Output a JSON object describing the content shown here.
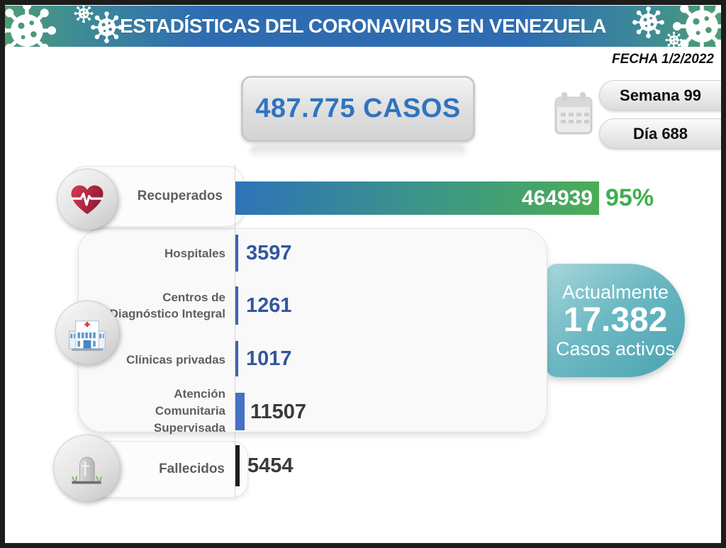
{
  "header": {
    "title": "ESTADÍSTICAS DEL CORONAVIRUS EN VENEZUELA"
  },
  "date_label": "FECHA 1/2/2022",
  "summary": {
    "total_cases_label": "487.775 CASOS",
    "week_label": "Semana 99",
    "day_label": "Día 688"
  },
  "active_box": {
    "intro": "Actualmente",
    "value": "17.382",
    "caption": "Casos activos"
  },
  "chart_data": {
    "type": "bar",
    "orientation": "horizontal",
    "title": "ESTADÍSTICAS DEL CORONAVIRUS EN VENEZUELA",
    "total_cases": 487775,
    "active_cases": 17382,
    "max_value": 464939,
    "rows": [
      {
        "label": "Recuperados",
        "lines": [
          "Recuperados"
        ],
        "value": 464939,
        "value_label": "464939",
        "percent_label": "95%",
        "icon": "heart-pulse"
      },
      {
        "label": "Hospitales",
        "lines": [
          "Hospitales"
        ],
        "value": 3597,
        "value_label": "3597"
      },
      {
        "label": "Centros de Diagnóstico Integral",
        "lines": [
          "Centros de",
          "Diagnóstico Integral"
        ],
        "value": 1261,
        "value_label": "1261",
        "icon": "hospital-building"
      },
      {
        "label": "Clínicas privadas",
        "lines": [
          "Clínicas privadas"
        ],
        "value": 1017,
        "value_label": "1017"
      },
      {
        "label": "Atención Comunitaria Supervisada",
        "lines": [
          "Atención",
          "Comunitaria",
          "Supervisada"
        ],
        "value": 11507,
        "value_label": "11507"
      },
      {
        "label": "Fallecidos",
        "lines": [
          "Fallecidos"
        ],
        "value": 5454,
        "value_label": "5454",
        "icon": "tombstone"
      }
    ]
  },
  "icons": {
    "recovered": "heart-pulse-icon",
    "medical_centers": "hospital-icon",
    "deceased": "tombstone-icon",
    "date": "calendar-icon",
    "decoration": "virus-icon"
  },
  "colors": {
    "header_green": "#4e9c73",
    "header_blue": "#2e6cb2",
    "total_text_blue": "#2e74c0",
    "number_blue": "#33569e",
    "number_dark": "#3a3a3a",
    "bar_gradient_start": "#2e73b8",
    "bar_gradient_end": "#4bad56",
    "percent_green": "#3fae4e",
    "active_teal_light": "#a9d6da",
    "active_teal_dark": "#4aa2b0",
    "deceased_bar": "#1d1d1d"
  }
}
